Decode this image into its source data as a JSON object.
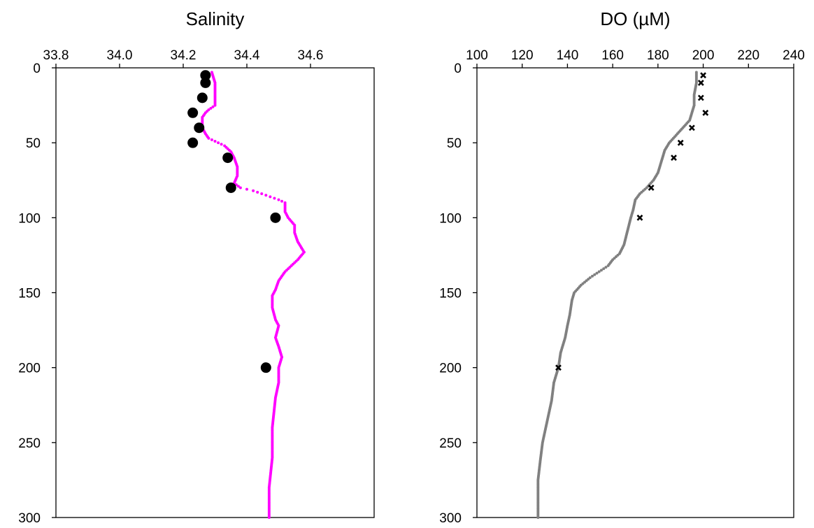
{
  "chart_data": [
    {
      "type": "scatter",
      "title": "Salinity",
      "xlabel": "",
      "ylabel": "",
      "x_axis_position": "top",
      "y_axis_reversed": true,
      "xlim": [
        33.8,
        34.8
      ],
      "ylim": [
        0,
        300
      ],
      "x_ticks": [
        "33.8",
        "34.0",
        "34.2",
        "34.4",
        "34.6"
      ],
      "y_ticks": [
        "0",
        "50",
        "100",
        "150",
        "200",
        "250",
        "300"
      ],
      "grid": false,
      "legend": "none",
      "series": [
        {
          "style": "dense-dotted-profile",
          "color": "#ff00ff",
          "points": [
            [
              34.29,
              3
            ],
            [
              34.3,
              10
            ],
            [
              34.3,
              18
            ],
            [
              34.3,
              25
            ],
            [
              34.28,
              28
            ],
            [
              34.27,
              30
            ],
            [
              34.26,
              33
            ],
            [
              34.26,
              40
            ],
            [
              34.27,
              44
            ],
            [
              34.28,
              47
            ],
            [
              34.31,
              50
            ],
            [
              34.33,
              52
            ],
            [
              34.35,
              56
            ],
            [
              34.36,
              60
            ],
            [
              34.37,
              66
            ],
            [
              34.37,
              72
            ],
            [
              34.36,
              77
            ],
            [
              34.38,
              80
            ],
            [
              34.42,
              82
            ],
            [
              34.46,
              85
            ],
            [
              34.5,
              88
            ],
            [
              34.52,
              90
            ],
            [
              34.52,
              96
            ],
            [
              34.53,
              100
            ],
            [
              34.55,
              105
            ],
            [
              34.55,
              110
            ],
            [
              34.56,
              116
            ],
            [
              34.58,
              123
            ],
            [
              34.56,
              128
            ],
            [
              34.54,
              132
            ],
            [
              34.52,
              136
            ],
            [
              34.5,
              142
            ],
            [
              34.49,
              148
            ],
            [
              34.48,
              152
            ],
            [
              34.48,
              160
            ],
            [
              34.49,
              168
            ],
            [
              34.5,
              172
            ],
            [
              34.49,
              180
            ],
            [
              34.5,
              186
            ],
            [
              34.51,
              193
            ],
            [
              34.5,
              200
            ],
            [
              34.5,
              210
            ],
            [
              34.49,
              220
            ],
            [
              34.48,
              240
            ],
            [
              34.48,
              260
            ],
            [
              34.47,
              280
            ],
            [
              34.47,
              300
            ]
          ]
        },
        {
          "style": "large-circles",
          "color": "#000000",
          "points": [
            [
              34.27,
              5
            ],
            [
              34.27,
              10
            ],
            [
              34.26,
              20
            ],
            [
              34.23,
              30
            ],
            [
              34.25,
              40
            ],
            [
              34.23,
              50
            ],
            [
              34.34,
              60
            ],
            [
              34.35,
              80
            ],
            [
              34.49,
              100
            ],
            [
              34.46,
              200
            ]
          ]
        }
      ]
    },
    {
      "type": "scatter",
      "title": "DO (µM)",
      "xlabel": "",
      "ylabel": "",
      "x_axis_position": "top",
      "y_axis_reversed": true,
      "xlim": [
        100,
        240
      ],
      "ylim": [
        0,
        300
      ],
      "x_ticks": [
        "100",
        "120",
        "140",
        "160",
        "180",
        "200",
        "220",
        "240"
      ],
      "y_ticks": [
        "0",
        "50",
        "100",
        "150",
        "200",
        "250",
        "300"
      ],
      "grid": false,
      "legend": "none",
      "series": [
        {
          "style": "dense-dotted-profile",
          "color": "#808080",
          "points": [
            [
              197,
              3
            ],
            [
              197,
              10
            ],
            [
              196,
              18
            ],
            [
              196,
              25
            ],
            [
              195,
              30
            ],
            [
              194,
              35
            ],
            [
              191,
              40
            ],
            [
              188,
              45
            ],
            [
              185,
              50
            ],
            [
              183,
              55
            ],
            [
              182,
              60
            ],
            [
              181,
              65
            ],
            [
              180,
              70
            ],
            [
              178,
              75
            ],
            [
              175,
              80
            ],
            [
              172,
              84
            ],
            [
              170,
              88
            ],
            [
              169,
              95
            ],
            [
              168,
              100
            ],
            [
              167,
              106
            ],
            [
              166,
              112
            ],
            [
              165,
              118
            ],
            [
              163,
              124
            ],
            [
              160,
              128
            ],
            [
              158,
              132
            ],
            [
              154,
              136
            ],
            [
              150,
              140
            ],
            [
              146,
              145
            ],
            [
              143,
              150
            ],
            [
              142,
              155
            ],
            [
              141,
              165
            ],
            [
              140,
              172
            ],
            [
              139,
              180
            ],
            [
              137,
              190
            ],
            [
              136,
              200
            ],
            [
              134,
              210
            ],
            [
              133,
              222
            ],
            [
              131,
              236
            ],
            [
              129,
              250
            ],
            [
              128,
              262
            ],
            [
              127,
              275
            ],
            [
              127,
              290
            ],
            [
              127,
              300
            ]
          ]
        },
        {
          "style": "x-markers",
          "color": "#000000",
          "points": [
            [
              200,
              5
            ],
            [
              199,
              10
            ],
            [
              199,
              20
            ],
            [
              201,
              30
            ],
            [
              195,
              40
            ],
            [
              190,
              50
            ],
            [
              187,
              60
            ],
            [
              177,
              80
            ],
            [
              172,
              100
            ],
            [
              136,
              200
            ]
          ]
        }
      ]
    }
  ]
}
